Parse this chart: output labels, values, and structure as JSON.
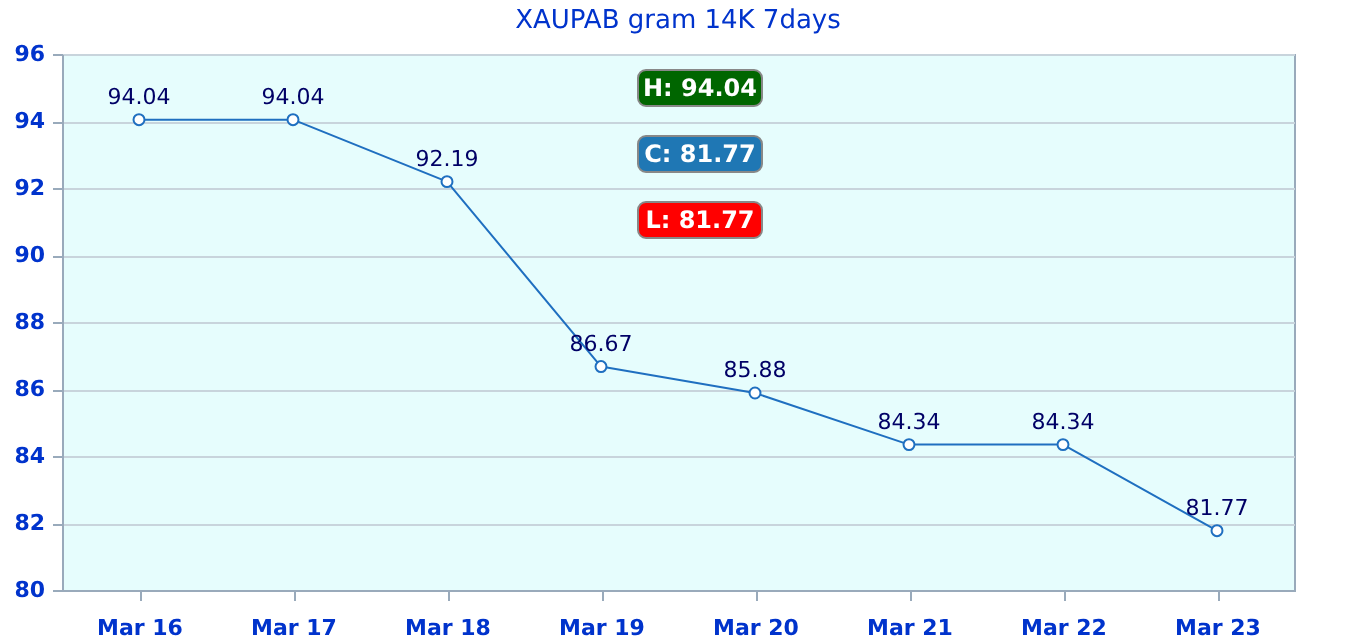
{
  "chart_data": {
    "type": "line",
    "title": "XAUPAB gram 14K 7days",
    "categories": [
      "Mar 16",
      "Mar 17",
      "Mar 18",
      "Mar 19",
      "Mar 20",
      "Mar 21",
      "Mar 22",
      "Mar 23"
    ],
    "series": [
      {
        "color": "#1f6fc0",
        "values": [
          94.04,
          94.04,
          92.19,
          86.67,
          85.88,
          84.34,
          84.34,
          81.77
        ]
      }
    ],
    "ylim": [
      80,
      96
    ],
    "yticks": [
      80,
      82,
      84,
      86,
      88,
      90,
      92,
      94,
      96
    ],
    "grid": "y",
    "marker": "circle",
    "line_style": "solid",
    "data_labels": true,
    "annotations": [
      "H: 94.04",
      "C: 81.77",
      "L: 81.77"
    ]
  }
}
